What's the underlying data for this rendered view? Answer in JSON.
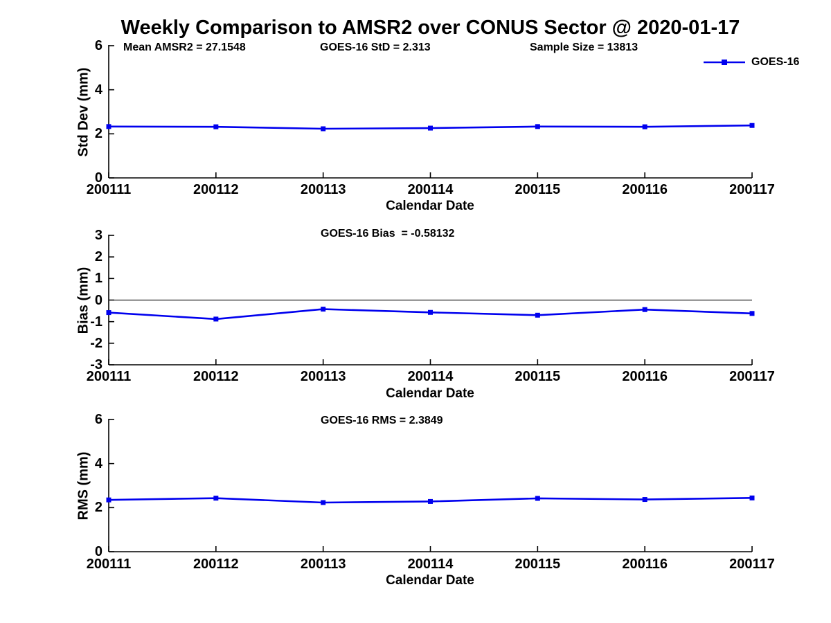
{
  "figure": {
    "title": "Weekly Comparison to AMSR2 over CONUS Sector @ 2020-01-17",
    "legend": {
      "label": "GOES-16",
      "position": "top-right-of-first-subplot"
    },
    "colors": {
      "series": "#0000ee",
      "axis": "#000000",
      "zero_line": "#222222",
      "text": "#000000"
    }
  },
  "chart_data": [
    {
      "type": "line",
      "name": "std-dev",
      "title": "",
      "annotations": [
        "Mean AMSR2 = 27.1548",
        "GOES-16 StD = 2.313",
        "Sample Size = 13813"
      ],
      "categories": [
        "200111",
        "200112",
        "200113",
        "200114",
        "200115",
        "200116",
        "200117"
      ],
      "series": [
        {
          "name": "GOES-16",
          "marker": "square",
          "values": [
            2.33,
            2.32,
            2.23,
            2.26,
            2.33,
            2.32,
            2.38
          ]
        }
      ],
      "xlabel": "Calendar Date",
      "ylabel": "Std Dev (mm)",
      "ylim": [
        0,
        6
      ],
      "yticks": [
        0,
        2,
        4,
        6
      ],
      "grid": false,
      "zero_line": false
    },
    {
      "type": "line",
      "name": "bias",
      "title": "",
      "annotations": [
        "GOES-16 Bias  = -0.58132"
      ],
      "categories": [
        "200111",
        "200112",
        "200113",
        "200114",
        "200115",
        "200116",
        "200117"
      ],
      "series": [
        {
          "name": "GOES-16",
          "marker": "square",
          "values": [
            -0.58,
            -0.88,
            -0.42,
            -0.57,
            -0.7,
            -0.44,
            -0.62
          ]
        }
      ],
      "xlabel": "Calendar Date",
      "ylabel": "Bias (mm)",
      "ylim": [
        -3,
        3
      ],
      "yticks": [
        -3,
        -2,
        -1,
        0,
        1,
        2,
        3
      ],
      "grid": false,
      "zero_line": true
    },
    {
      "type": "line",
      "name": "rms",
      "title": "",
      "annotations": [
        "GOES-16 RMS = 2.3849"
      ],
      "categories": [
        "200111",
        "200112",
        "200113",
        "200114",
        "200115",
        "200116",
        "200117"
      ],
      "series": [
        {
          "name": "GOES-16",
          "marker": "square",
          "values": [
            2.35,
            2.43,
            2.23,
            2.28,
            2.42,
            2.37,
            2.44
          ]
        }
      ],
      "xlabel": "Calendar Date",
      "ylabel": "RMS (mm)",
      "ylim": [
        0,
        6
      ],
      "yticks": [
        0,
        2,
        4,
        6
      ],
      "grid": false,
      "zero_line": false
    }
  ]
}
